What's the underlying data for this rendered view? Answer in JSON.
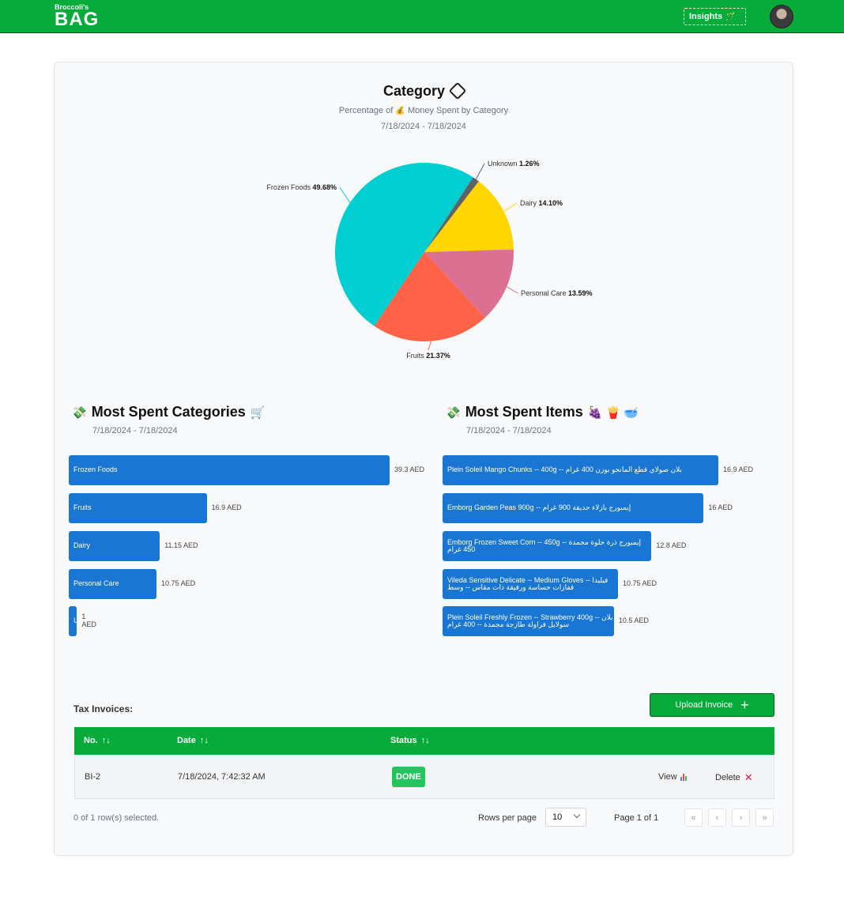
{
  "header": {
    "logo_small": "Broccoli's",
    "logo_big": "BAG",
    "insights_label": "Insights",
    "insights_icon": "🪄"
  },
  "category_chart": {
    "title": "Category",
    "subtitle_prefix": "Percentage of",
    "subtitle_emoji": "💰",
    "subtitle_suffix": "Money Spent by Category",
    "date_range": "7/18/2024 - 7/18/2024"
  },
  "chart_data": [
    {
      "type": "pie",
      "title": "Category",
      "labels": [
        "Unknown",
        "Dairy",
        "Personal Care",
        "Fruits",
        "Frozen Foods"
      ],
      "values": [
        1.26,
        14.1,
        13.59,
        21.37,
        49.68
      ],
      "value_labels": [
        "1.26%",
        "14.10%",
        "13.59%",
        "21.37%",
        "49.68%"
      ],
      "colors": [
        "#5f6366",
        "#ffd600",
        "#db7093",
        "#ff6347",
        "#00ced1"
      ]
    },
    {
      "type": "bar",
      "title": "Most Spent Categories",
      "categories": [
        "Frozen Foods",
        "Fruits",
        "Dairy",
        "Personal Care",
        "Unknown"
      ],
      "values": [
        39.3,
        16.9,
        11.15,
        10.75,
        1
      ],
      "value_labels": [
        "39.3 AED",
        "16.9 AED",
        "11.15 AED",
        "10.75 AED",
        "1 AED"
      ],
      "xlim": [
        0,
        39.3
      ]
    },
    {
      "type": "bar",
      "title": "Most Spent Items",
      "categories": [
        "Plein Soleil Mango Chunks -- 400g -- بلان صولاي قطع المانجو بوزن 400 غرام",
        "Emborg Garden Peas 900g -- إيمبورج بازلاء حديقة 900 غرام",
        "Emborg Frozen Sweet Corn -- 450g -- إيمبورج ذرة حلوة مجمدة 450 غرام",
        "Vileda Sensitive Delicate -- Medium Gloves -- فيليدا قفازات حساسة ورقيقة ذات مقاس -- وسط",
        "Plein Soleil Freshly Frozen -- Strawberry 400g -- بلان سولايل فراولة طازجة مجمدة -- 400 غرام"
      ],
      "values": [
        16.9,
        16,
        12.8,
        10.75,
        10.5
      ],
      "value_labels": [
        "16.9 AED",
        "16 AED",
        "12.8 AED",
        "10.75 AED",
        "10.5 AED"
      ],
      "xlim": [
        0,
        16.9
      ]
    }
  ],
  "most_spent_categories": {
    "title": "Most Spent Categories",
    "title_emoji": "💸",
    "suffix_emoji": "🛒",
    "date_range": "7/18/2024 - 7/18/2024"
  },
  "most_spent_items": {
    "title": "Most Spent Items",
    "title_emoji": "💸",
    "suffix_emojis": "🍇 🍟 🥣",
    "date_range": "7/18/2024 - 7/18/2024"
  },
  "invoices": {
    "label": "Tax Invoices:",
    "upload_label": "Upload Invoice",
    "columns": [
      "No.",
      "Date",
      "Status"
    ],
    "rows": [
      {
        "no": "BI-2",
        "date": "7/18/2024, 7:42:32 AM",
        "status": "DONE",
        "view": "View",
        "delete": "Delete"
      }
    ],
    "selection_text": "0 of 1 row(s) selected.",
    "rows_per_page_label": "Rows per page",
    "rows_per_page_value": "10",
    "page_text": "Page 1 of 1",
    "pager": [
      "«",
      "‹",
      "›",
      "»"
    ]
  },
  "colors": {
    "brand_green": "#07ab3a",
    "bar_blue": "#1976d2",
    "done_green": "#22c55e",
    "delete_red": "#e11d48"
  }
}
